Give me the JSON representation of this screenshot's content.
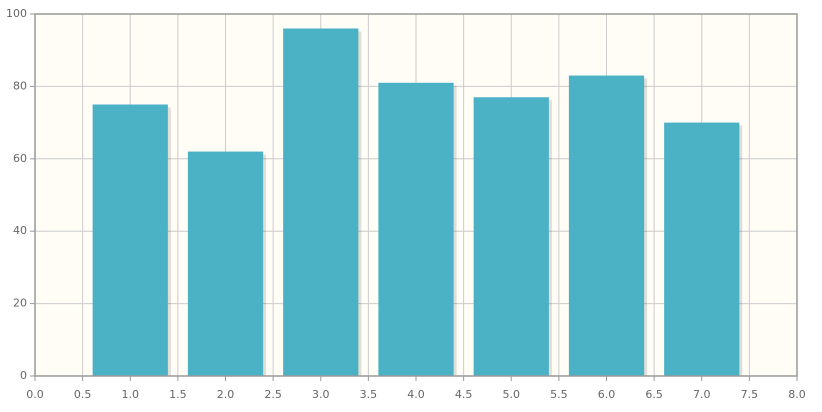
{
  "chart_data": {
    "type": "bar",
    "x": [
      1,
      2,
      3,
      4,
      5,
      6,
      7
    ],
    "values": [
      75,
      62,
      96,
      81,
      77,
      83,
      70
    ],
    "color": "#4bb2c5",
    "xlim": [
      0,
      8
    ],
    "xticks": [
      {
        "value": 0,
        "label": "0.0"
      },
      {
        "value": 0.5,
        "label": "0.5"
      },
      {
        "value": 1,
        "label": "1.0"
      },
      {
        "value": 1.5,
        "label": "1.5"
      },
      {
        "value": 2,
        "label": "2.0"
      },
      {
        "value": 2.5,
        "label": "2.5"
      },
      {
        "value": 3,
        "label": "3.0"
      },
      {
        "value": 3.5,
        "label": "3.5"
      },
      {
        "value": 4,
        "label": "4.0"
      },
      {
        "value": 4.5,
        "label": "4.5"
      },
      {
        "value": 5,
        "label": "5.0"
      },
      {
        "value": 5.5,
        "label": "5.5"
      },
      {
        "value": 6,
        "label": "6.0"
      },
      {
        "value": 6.5,
        "label": "6.5"
      },
      {
        "value": 7,
        "label": "7.0"
      },
      {
        "value": 7.5,
        "label": "7.5"
      },
      {
        "value": 8,
        "label": "8.0"
      }
    ],
    "ylim": [
      0,
      100
    ],
    "yticks": [
      0,
      20,
      40,
      60,
      80,
      100
    ],
    "grid": true
  }
}
